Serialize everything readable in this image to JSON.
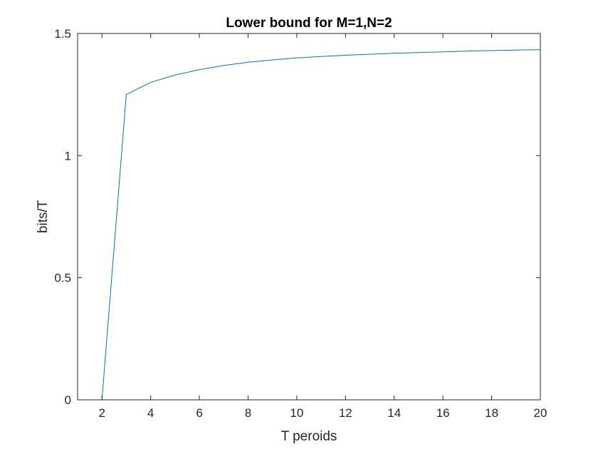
{
  "chart_data": {
    "type": "line",
    "title": "Lower bound for M=1,N=2",
    "xlabel": "T peroids",
    "ylabel": "bits/T",
    "xlim": [
      1,
      20
    ],
    "ylim": [
      0,
      1.5
    ],
    "xticks": [
      2,
      4,
      6,
      8,
      10,
      12,
      14,
      16,
      18,
      20
    ],
    "yticks": [
      0,
      0.5,
      1,
      1.5
    ],
    "xtick_labels": [
      "2",
      "4",
      "6",
      "8",
      "10",
      "12",
      "14",
      "16",
      "18",
      "20"
    ],
    "ytick_labels": [
      "0",
      "0.5",
      "1",
      "1.5"
    ],
    "grid": false,
    "series": [
      {
        "name": "lower bound",
        "color": "#0072BD",
        "x": [
          1,
          2,
          3,
          4,
          5,
          6,
          7,
          8,
          9,
          10,
          11,
          12,
          13,
          14,
          15,
          16,
          17,
          18,
          19,
          20
        ],
        "y": [
          0,
          0,
          1.25,
          1.3,
          1.33,
          1.352,
          1.369,
          1.382,
          1.392,
          1.4,
          1.406,
          1.411,
          1.415,
          1.419,
          1.422,
          1.425,
          1.428,
          1.43,
          1.432,
          1.434
        ]
      }
    ]
  }
}
